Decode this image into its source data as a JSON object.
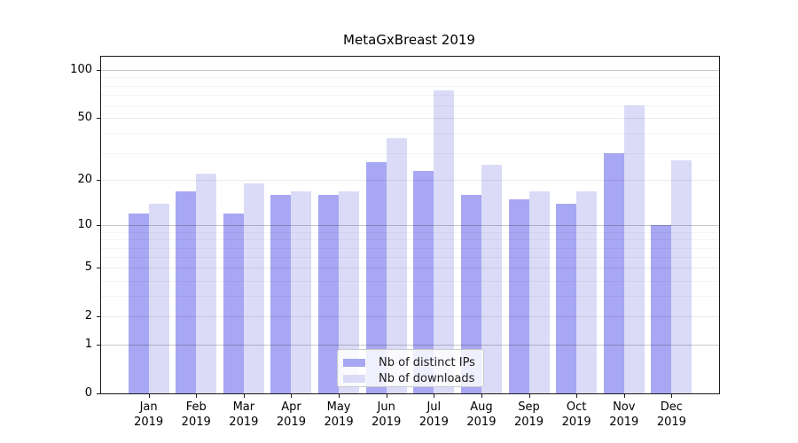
{
  "chart_data": {
    "type": "bar",
    "title": "MetaGxBreast 2019",
    "xlabel": "",
    "ylabel": "",
    "scale": "log10(1+y)",
    "grid": true,
    "legend_position": "inside-bottom-center",
    "categories": [
      "Jan",
      "Feb",
      "Mar",
      "Apr",
      "May",
      "Jun",
      "Jul",
      "Aug",
      "Sep",
      "Oct",
      "Nov",
      "Dec"
    ],
    "year": "2019",
    "series": [
      {
        "name": "Nb of distinct IPs",
        "color": "#a7a7f3",
        "values": [
          12,
          17,
          12,
          16,
          16,
          26,
          23,
          16,
          15,
          14,
          30,
          10
        ]
      },
      {
        "name": "Nb of downloads",
        "color": "#dbdbf8",
        "values": [
          14,
          22,
          19,
          17,
          17,
          37,
          75,
          25,
          17,
          17,
          60,
          27
        ]
      }
    ],
    "y_ticks": [
      0,
      1,
      2,
      5,
      10,
      20,
      50,
      100
    ],
    "y_major_gridlines": [
      1,
      10,
      100
    ],
    "y_mid_gridlines": [
      2,
      5,
      20,
      50
    ],
    "y_minor_gridlines": [
      3,
      4,
      6,
      7,
      8,
      9,
      30,
      40,
      60,
      70,
      80,
      90
    ],
    "ylim": [
      0,
      122
    ]
  }
}
